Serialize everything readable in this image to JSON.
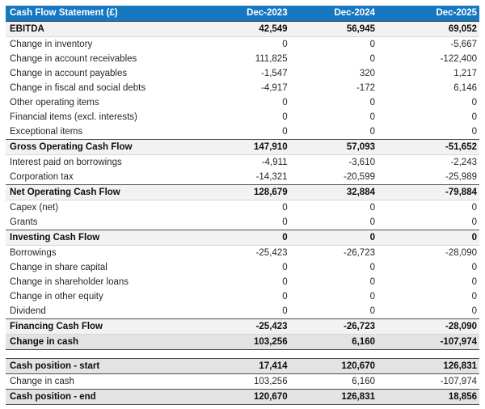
{
  "table": {
    "title": "Cash Flow Statement (£)",
    "columns": [
      "Dec-2023",
      "Dec-2024",
      "Dec-2025"
    ],
    "rows": [
      {
        "label": "EBITDA",
        "style": "section",
        "values": [
          "42,549",
          "56,945",
          "69,052"
        ]
      },
      {
        "label": "Change in inventory",
        "style": "normal",
        "values": [
          "0",
          "0",
          "-5,667"
        ]
      },
      {
        "label": "Change in account receivables",
        "style": "normal",
        "values": [
          "111,825",
          "0",
          "-122,400"
        ]
      },
      {
        "label": "Change in account payables",
        "style": "normal",
        "values": [
          "-1,547",
          "320",
          "1,217"
        ]
      },
      {
        "label": "Change in fiscal and social debts",
        "style": "normal",
        "values": [
          "-4,917",
          "-172",
          "6,146"
        ]
      },
      {
        "label": "Other operating items",
        "style": "normal",
        "values": [
          "0",
          "0",
          "0"
        ]
      },
      {
        "label": "Financial items (excl. interests)",
        "style": "normal",
        "values": [
          "0",
          "0",
          "0"
        ]
      },
      {
        "label": "Exceptional items",
        "style": "normal",
        "values": [
          "0",
          "0",
          "0"
        ]
      },
      {
        "label": "Gross Operating Cash Flow",
        "style": "section",
        "values": [
          "147,910",
          "57,093",
          "-51,652"
        ]
      },
      {
        "label": "Interest paid on borrowings",
        "style": "normal",
        "values": [
          "-4,911",
          "-3,610",
          "-2,243"
        ]
      },
      {
        "label": "Corporation tax",
        "style": "normal",
        "values": [
          "-14,321",
          "-20,599",
          "-25,989"
        ]
      },
      {
        "label": "Net Operating Cash Flow",
        "style": "section",
        "values": [
          "128,679",
          "32,884",
          "-79,884"
        ]
      },
      {
        "label": "Capex (net)",
        "style": "normal",
        "values": [
          "0",
          "0",
          "0"
        ]
      },
      {
        "label": "Grants",
        "style": "normal",
        "values": [
          "0",
          "0",
          "0"
        ]
      },
      {
        "label": "Investing Cash Flow",
        "style": "section",
        "values": [
          "0",
          "0",
          "0"
        ]
      },
      {
        "label": "Borrowings",
        "style": "normal",
        "values": [
          "-25,423",
          "-26,723",
          "-28,090"
        ]
      },
      {
        "label": "Change in share capital",
        "style": "normal",
        "values": [
          "0",
          "0",
          "0"
        ]
      },
      {
        "label": "Change in shareholder loans",
        "style": "normal",
        "values": [
          "0",
          "0",
          "0"
        ]
      },
      {
        "label": "Change in other equity",
        "style": "normal",
        "values": [
          "0",
          "0",
          "0"
        ]
      },
      {
        "label": "Dividend",
        "style": "normal",
        "values": [
          "0",
          "0",
          "0"
        ]
      },
      {
        "label": "Financing Cash Flow",
        "style": "section",
        "values": [
          "-25,423",
          "-26,723",
          "-28,090"
        ]
      },
      {
        "label": "Change in cash",
        "style": "highlight",
        "values": [
          "103,256",
          "6,160",
          "-107,974"
        ]
      },
      {
        "label": "",
        "style": "spacer",
        "values": []
      },
      {
        "label": "Cash position - start",
        "style": "highlight",
        "values": [
          "17,414",
          "120,670",
          "126,831"
        ]
      },
      {
        "label": "Change in cash",
        "style": "normal",
        "values": [
          "103,256",
          "6,160",
          "-107,974"
        ]
      },
      {
        "label": "Cash position - end",
        "style": "highlight",
        "values": [
          "120,670",
          "126,831",
          "18,856"
        ]
      }
    ]
  },
  "colors": {
    "header_bg": "#1778c2",
    "header_text": "#ffffff",
    "section_bg": "#f2f2f2",
    "highlight_bg": "#e3e3e3"
  }
}
